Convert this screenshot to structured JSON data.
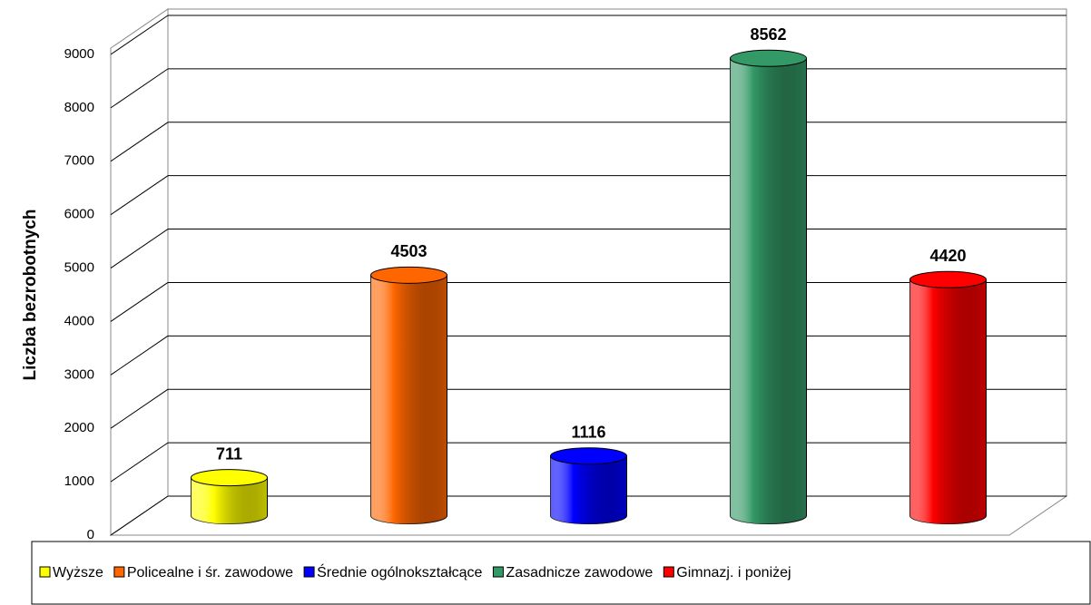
{
  "chart_data": {
    "type": "bar3d",
    "y_label": "Liczba bezrobotnych",
    "categories": [
      "Wyższe",
      "Policealne i śr. zawodowe",
      "Średnie ogólnokształcące",
      "Zasadnicze zawodowe",
      "Gimnazj. i poniżej"
    ],
    "values": [
      711,
      4503,
      1116,
      8562,
      4420
    ],
    "colors": [
      "#ffff00",
      "#ff6600",
      "#0000ff",
      "#339966",
      "#ff0000"
    ],
    "ylim": [
      0,
      9000
    ],
    "yticks": [
      0,
      1000,
      2000,
      3000,
      4000,
      5000,
      6000,
      7000,
      8000,
      9000
    ],
    "grid": true
  }
}
